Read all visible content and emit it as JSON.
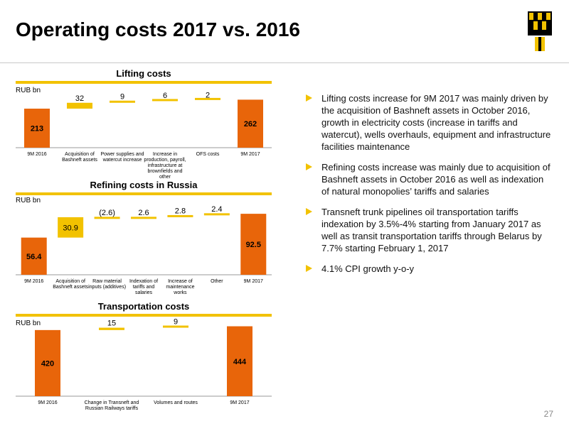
{
  "slide": {
    "title": "Operating costs 2017 vs. 2016",
    "page_number": "27"
  },
  "colors": {
    "accent": "#f2c200",
    "bar": "#e8650a",
    "text": "#000000"
  },
  "chart_data": [
    {
      "type": "waterfall",
      "title": "Lifting costs",
      "ylabel": "RUB bn",
      "ylim": [
        0,
        310
      ],
      "categories": [
        [
          "9M 2016"
        ],
        [
          "Acquisition of",
          "Bashneft assets"
        ],
        [
          "Power supplies and",
          "watercut increase"
        ],
        [
          "Increase in",
          "production, payroll,",
          "infrastructure at",
          "brownfields and",
          "other"
        ],
        [
          "OFS costs"
        ],
        [
          "9M 2017"
        ]
      ],
      "values": [
        213,
        32,
        9,
        6,
        2,
        262
      ],
      "labels": [
        "213",
        "32",
        "9",
        "6",
        "2",
        "262"
      ],
      "kinds": [
        "total",
        "delta",
        "delta",
        "delta",
        "delta",
        "total"
      ]
    },
    {
      "type": "waterfall",
      "title": "Refining costs in Russia",
      "ylabel": "RUB bn",
      "ylim": [
        0,
        112
      ],
      "categories": [
        [
          "9M 2016"
        ],
        [
          "Acquisition of",
          "Bashneft assets"
        ],
        [
          "Raw material",
          "inputs (additives)"
        ],
        [
          "Indexation of",
          "tariffs and",
          "salaries"
        ],
        [
          "Increase of",
          "maintenance",
          "works"
        ],
        [
          "Other"
        ],
        [
          "9M 2017"
        ]
      ],
      "values": [
        56.4,
        30.9,
        -2.6,
        2.6,
        2.8,
        2.4,
        92.5
      ],
      "labels": [
        "56.4",
        "30.9",
        "(2.6)",
        "2.6",
        "2.8",
        "2.4",
        "92.5"
      ],
      "kinds": [
        "total",
        "delta",
        "delta",
        "delta",
        "delta",
        "delta",
        "total"
      ]
    },
    {
      "type": "waterfall",
      "title": "Transportation costs",
      "ylabel": "RUB bn",
      "ylim": [
        0,
        460
      ],
      "categories": [
        [
          "9M 2016"
        ],
        [
          "Change in Transneft and",
          "Russian Railways tariffs"
        ],
        [
          "Volumes and routes"
        ],
        [
          "9M 2017"
        ]
      ],
      "values": [
        420,
        15,
        9,
        444
      ],
      "labels": [
        "420",
        "15",
        "9",
        "444"
      ],
      "kinds": [
        "total",
        "delta",
        "delta",
        "total"
      ]
    }
  ],
  "bullets": [
    "Lifting costs increase for 9M 2017 was mainly driven by the acquisition of Bashneft assets in October 2016, growth in electricity costs (increase in tariffs and watercut), wells overhauls, equipment and infrastructure facilities maintenance",
    "Refining costs increase was mainly due to acquisition of Bashneft assets in October 2016 as well as indexation of natural monopolies’ tariffs and salaries",
    "Transneft trunk pipelines oil transportation tariffs indexation by 3.5%-4% starting from January 2017 as well as transit transportation tariffs through Belarus by 7.7% starting February 1, 2017",
    "4.1% CPI growth y-o-y"
  ]
}
